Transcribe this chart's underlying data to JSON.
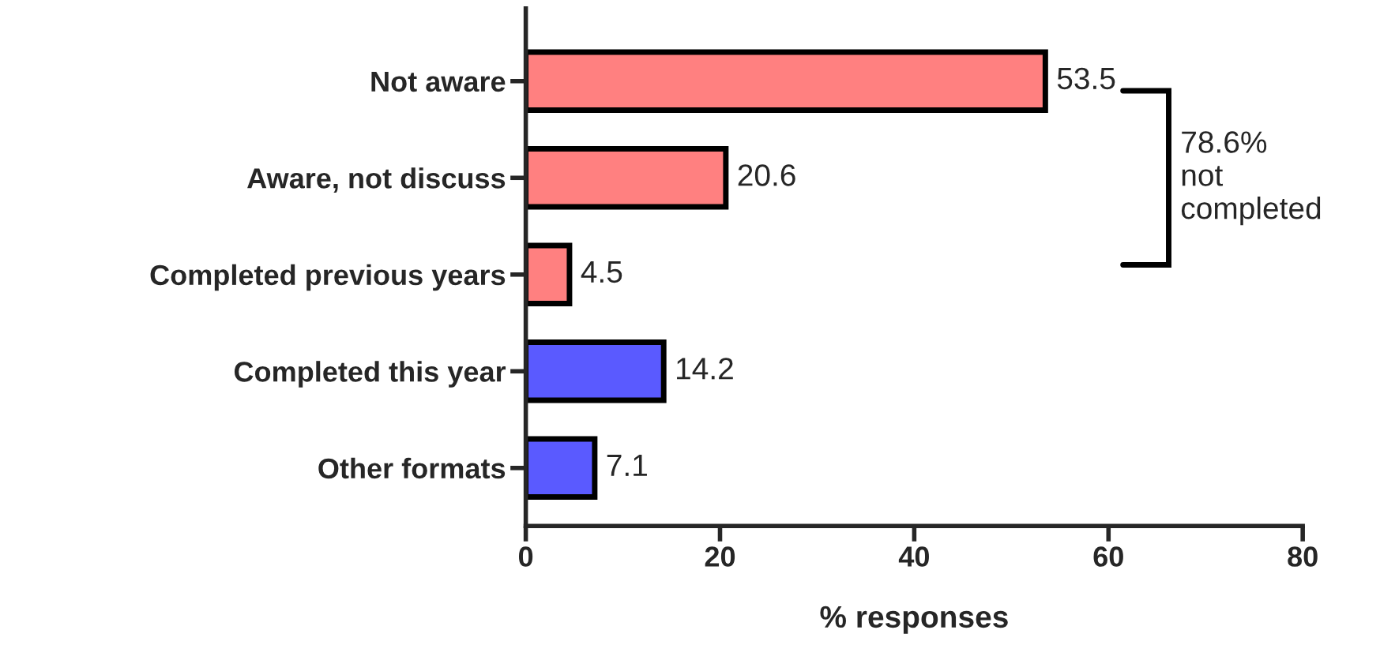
{
  "chart_data": {
    "type": "bar",
    "orientation": "horizontal",
    "categories": [
      "Not aware",
      "Aware, not discuss",
      "Completed previous years",
      "Completed this year",
      "Other formats"
    ],
    "values": [
      53.5,
      20.6,
      4.5,
      14.2,
      7.1
    ],
    "colors": [
      "#ff8080",
      "#ff8080",
      "#ff8080",
      "#5a5aff",
      "#5a5aff"
    ],
    "xlabel": "% responses",
    "xlim": [
      0,
      80
    ],
    "xticks": [
      0,
      20,
      40,
      60,
      80
    ],
    "data_labels": true,
    "grid": false,
    "legend": false,
    "annotations": [
      "78.6%\nnot\ncompleted"
    ]
  }
}
